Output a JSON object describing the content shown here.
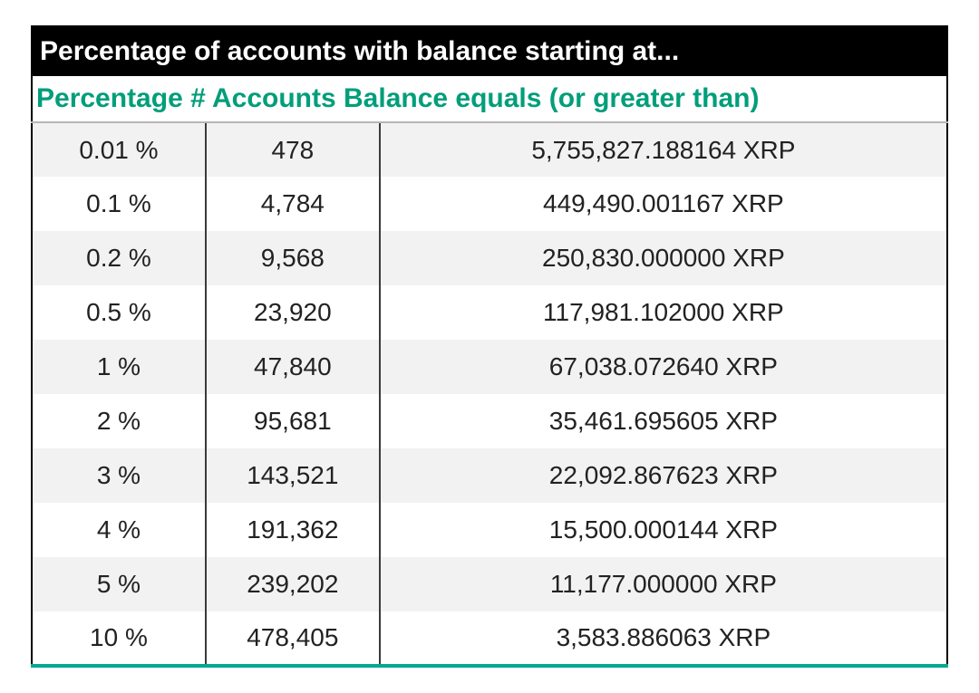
{
  "table": {
    "type": "table",
    "title": "Percentage of accounts with balance starting at...",
    "subtitle": "Percentage # Accounts Balance equals (or greater than)",
    "columns": [
      "Percentage",
      "# Accounts",
      "Balance equals (or greater than)"
    ],
    "column_widths_pct": [
      19,
      19,
      62
    ],
    "column_align": [
      "center",
      "center",
      "center"
    ],
    "title_bg": "#000000",
    "title_color": "#ffffff",
    "title_fontsize": 30,
    "title_fontweight": 700,
    "subtitle_color": "#009e7a",
    "subtitle_bg": "#ffffff",
    "subtitle_fontsize": 30,
    "subtitle_fontweight": 700,
    "body_fontsize": 28,
    "body_color": "#222222",
    "row_bg_odd": "#f2f2f2",
    "row_bg_even": "#ffffff",
    "outer_border_color": "#000000",
    "outer_border_width": 2,
    "vertical_tick_color": "#3a3a3a",
    "vertical_tick_width": 2,
    "bottom_rule_color": "#00a98f",
    "bottom_rule_width": 4,
    "rows": [
      {
        "percentage": "0.01 %",
        "accounts": "478",
        "balance": "5,755,827.188164 XRP"
      },
      {
        "percentage": "0.1 %",
        "accounts": "4,784",
        "balance": "449,490.001167 XRP"
      },
      {
        "percentage": "0.2 %",
        "accounts": "9,568",
        "balance": "250,830.000000 XRP"
      },
      {
        "percentage": "0.5 %",
        "accounts": "23,920",
        "balance": "117,981.102000 XRP"
      },
      {
        "percentage": "1 %",
        "accounts": "47,840",
        "balance": "67,038.072640 XRP"
      },
      {
        "percentage": "2 %",
        "accounts": "95,681",
        "balance": "35,461.695605 XRP"
      },
      {
        "percentage": "3 %",
        "accounts": "143,521",
        "balance": "22,092.867623 XRP"
      },
      {
        "percentage": "4 %",
        "accounts": "191,362",
        "balance": "15,500.000144 XRP"
      },
      {
        "percentage": "5 %",
        "accounts": "239,202",
        "balance": "11,177.000000 XRP"
      },
      {
        "percentage": "10 %",
        "accounts": "478,405",
        "balance": "3,583.886063 XRP"
      }
    ]
  }
}
